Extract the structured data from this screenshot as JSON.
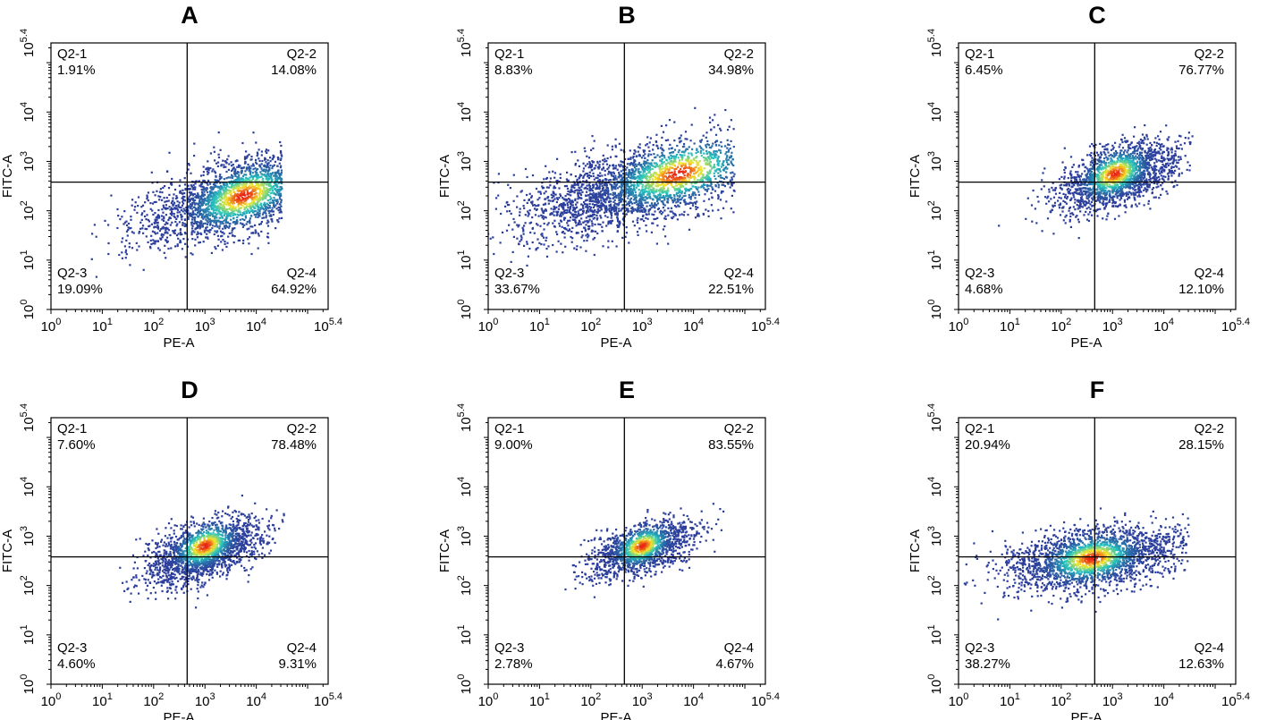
{
  "chart_data": [
    {
      "type": "scatter",
      "panel": "A",
      "xlabel": "PE-A",
      "ylabel": "FITC-A",
      "x_scale": "log10",
      "y_scale": "log10",
      "xlim": [
        1,
        251189
      ],
      "ylim": [
        1,
        251189
      ],
      "gate": {
        "x": 450,
        "y": 380
      },
      "x_ticks": [
        {
          "base": "10",
          "exp": "0"
        },
        {
          "base": "10",
          "exp": "1"
        },
        {
          "base": "10",
          "exp": "2"
        },
        {
          "base": "10",
          "exp": "3"
        },
        {
          "base": "10",
          "exp": "4"
        },
        {
          "base": "10",
          "exp": "5.4"
        }
      ],
      "y_ticks": [
        {
          "base": "10",
          "exp": "0"
        },
        {
          "base": "10",
          "exp": "1"
        },
        {
          "base": "10",
          "exp": "2"
        },
        {
          "base": "10",
          "exp": "3"
        },
        {
          "base": "10",
          "exp": "4"
        },
        {
          "base": "10",
          "exp": "5.4"
        }
      ],
      "quadrants": [
        {
          "name": "Q2-1",
          "value": "1.91%"
        },
        {
          "name": "Q2-2",
          "value": "14.08%"
        },
        {
          "name": "Q2-3",
          "value": "19.09%"
        },
        {
          "name": "Q2-4",
          "value": "64.92%"
        }
      ],
      "population": {
        "center_log": [
          3.7,
          2.3
        ],
        "spread_log": [
          0.95,
          0.38
        ],
        "slope": 0.3,
        "x_range_log": [
          0,
          4.5
        ],
        "dense_center_log": [
          3.75,
          2.3
        ],
        "count": 2600
      },
      "colors": {
        "low": "#2c3e9c",
        "mid": "#25c4c0",
        "high": "#e81e13"
      }
    },
    {
      "type": "scatter",
      "panel": "B",
      "xlabel": "PE-A",
      "ylabel": "FITC-A",
      "x_scale": "log10",
      "y_scale": "log10",
      "xlim": [
        1,
        251189
      ],
      "ylim": [
        1,
        251189
      ],
      "gate": {
        "x": 450,
        "y": 380
      },
      "x_ticks": [
        {
          "base": "10",
          "exp": "0"
        },
        {
          "base": "10",
          "exp": "1"
        },
        {
          "base": "10",
          "exp": "2"
        },
        {
          "base": "10",
          "exp": "3"
        },
        {
          "base": "10",
          "exp": "4"
        },
        {
          "base": "10",
          "exp": "5.4"
        }
      ],
      "y_ticks": [
        {
          "base": "10",
          "exp": "0"
        },
        {
          "base": "10",
          "exp": "1"
        },
        {
          "base": "10",
          "exp": "2"
        },
        {
          "base": "10",
          "exp": "3"
        },
        {
          "base": "10",
          "exp": "4"
        },
        {
          "base": "10",
          "exp": "5.4"
        }
      ],
      "quadrants": [
        {
          "name": "Q2-1",
          "value": "8.83%"
        },
        {
          "name": "Q2-2",
          "value": "34.98%"
        },
        {
          "name": "Q2-3",
          "value": "33.67%"
        },
        {
          "name": "Q2-4",
          "value": "22.51%"
        }
      ],
      "population": {
        "center_log": [
          3.0,
          2.5
        ],
        "spread_log": [
          1.25,
          0.4
        ],
        "slope": 0.25,
        "x_range_log": [
          0,
          4.8
        ],
        "dense_center_log": [
          3.7,
          2.75
        ],
        "count": 2800
      },
      "colors": {
        "low": "#2c3e9c",
        "mid": "#25c4c0",
        "high": "#e81e13"
      }
    },
    {
      "type": "scatter",
      "panel": "C",
      "xlabel": "PE-A",
      "ylabel": "FITC-A",
      "x_scale": "log10",
      "y_scale": "log10",
      "xlim": [
        1,
        251189
      ],
      "ylim": [
        1,
        251189
      ],
      "gate": {
        "x": 450,
        "y": 380
      },
      "x_ticks": [
        {
          "base": "10",
          "exp": "0"
        },
        {
          "base": "10",
          "exp": "1"
        },
        {
          "base": "10",
          "exp": "2"
        },
        {
          "base": "10",
          "exp": "3"
        },
        {
          "base": "10",
          "exp": "4"
        },
        {
          "base": "10",
          "exp": "5.4"
        }
      ],
      "y_ticks": [
        {
          "base": "10",
          "exp": "0"
        },
        {
          "base": "10",
          "exp": "1"
        },
        {
          "base": "10",
          "exp": "2"
        },
        {
          "base": "10",
          "exp": "3"
        },
        {
          "base": "10",
          "exp": "4"
        },
        {
          "base": "10",
          "exp": "5.4"
        }
      ],
      "quadrants": [
        {
          "name": "Q2-1",
          "value": "6.45%"
        },
        {
          "name": "Q2-2",
          "value": "76.77%"
        },
        {
          "name": "Q2-3",
          "value": "4.68%"
        },
        {
          "name": "Q2-4",
          "value": "12.10%"
        }
      ],
      "population": {
        "center_log": [
          3.1,
          2.7
        ],
        "spread_log": [
          0.6,
          0.3
        ],
        "slope": 0.3,
        "x_range_log": [
          0.5,
          4.6
        ],
        "dense_center_log": [
          3.05,
          2.75
        ],
        "count": 1900
      },
      "colors": {
        "low": "#2c3e9c",
        "mid": "#25c4c0",
        "high": "#e81e13"
      }
    },
    {
      "type": "scatter",
      "panel": "D",
      "xlabel": "PE-A",
      "ylabel": "FITC-A",
      "x_scale": "log10",
      "y_scale": "log10",
      "xlim": [
        1,
        251189
      ],
      "ylim": [
        1,
        251189
      ],
      "gate": {
        "x": 450,
        "y": 380
      },
      "x_ticks": [
        {
          "base": "10",
          "exp": "0"
        },
        {
          "base": "10",
          "exp": "1"
        },
        {
          "base": "10",
          "exp": "2"
        },
        {
          "base": "10",
          "exp": "3"
        },
        {
          "base": "10",
          "exp": "4"
        },
        {
          "base": "10",
          "exp": "5.4"
        }
      ],
      "y_ticks": [
        {
          "base": "10",
          "exp": "0"
        },
        {
          "base": "10",
          "exp": "1"
        },
        {
          "base": "10",
          "exp": "2"
        },
        {
          "base": "10",
          "exp": "3"
        },
        {
          "base": "10",
          "exp": "4"
        },
        {
          "base": "10",
          "exp": "5.4"
        }
      ],
      "quadrants": [
        {
          "name": "Q2-1",
          "value": "7.60%"
        },
        {
          "name": "Q2-2",
          "value": "78.48%"
        },
        {
          "name": "Q2-3",
          "value": "4.60%"
        },
        {
          "name": "Q2-4",
          "value": "9.31%"
        }
      ],
      "population": {
        "center_log": [
          3.0,
          2.7
        ],
        "spread_log": [
          0.55,
          0.28
        ],
        "slope": 0.3,
        "x_range_log": [
          0.8,
          4.6
        ],
        "dense_center_log": [
          3.0,
          2.8
        ],
        "count": 1900
      },
      "colors": {
        "low": "#2c3e9c",
        "mid": "#25c4c0",
        "high": "#e81e13"
      }
    },
    {
      "type": "scatter",
      "panel": "E",
      "xlabel": "PE-A",
      "ylabel": "FITC-A",
      "x_scale": "log10",
      "y_scale": "log10",
      "xlim": [
        1,
        251189
      ],
      "ylim": [
        1,
        251189
      ],
      "gate": {
        "x": 450,
        "y": 380
      },
      "x_ticks": [
        {
          "base": "10",
          "exp": "0"
        },
        {
          "base": "10",
          "exp": "1"
        },
        {
          "base": "10",
          "exp": "2"
        },
        {
          "base": "10",
          "exp": "3"
        },
        {
          "base": "10",
          "exp": "4"
        },
        {
          "base": "10",
          "exp": "5.4"
        }
      ],
      "y_ticks": [
        {
          "base": "10",
          "exp": "0"
        },
        {
          "base": "10",
          "exp": "1"
        },
        {
          "base": "10",
          "exp": "2"
        },
        {
          "base": "10",
          "exp": "3"
        },
        {
          "base": "10",
          "exp": "4"
        },
        {
          "base": "10",
          "exp": "5.4"
        }
      ],
      "quadrants": [
        {
          "name": "Q2-1",
          "value": "9.00%"
        },
        {
          "name": "Q2-2",
          "value": "83.55%"
        },
        {
          "name": "Q2-3",
          "value": "2.78%"
        },
        {
          "name": "Q2-4",
          "value": "4.67%"
        }
      ],
      "population": {
        "center_log": [
          3.0,
          2.75
        ],
        "spread_log": [
          0.5,
          0.25
        ],
        "slope": 0.3,
        "x_range_log": [
          1.0,
          4.6
        ],
        "dense_center_log": [
          3.0,
          2.8
        ],
        "count": 1500
      },
      "colors": {
        "low": "#2c3e9c",
        "mid": "#25c4c0",
        "high": "#e81e13"
      }
    },
    {
      "type": "scatter",
      "panel": "F",
      "xlabel": "PE-A",
      "ylabel": "FITC-A",
      "x_scale": "log10",
      "y_scale": "log10",
      "xlim": [
        1,
        251189
      ],
      "ylim": [
        1,
        251189
      ],
      "gate": {
        "x": 450,
        "y": 380
      },
      "x_ticks": [
        {
          "base": "10",
          "exp": "0"
        },
        {
          "base": "10",
          "exp": "1"
        },
        {
          "base": "10",
          "exp": "2"
        },
        {
          "base": "10",
          "exp": "3"
        },
        {
          "base": "10",
          "exp": "4"
        },
        {
          "base": "10",
          "exp": "5.4"
        }
      ],
      "y_ticks": [
        {
          "base": "10",
          "exp": "0"
        },
        {
          "base": "10",
          "exp": "1"
        },
        {
          "base": "10",
          "exp": "2"
        },
        {
          "base": "10",
          "exp": "3"
        },
        {
          "base": "10",
          "exp": "4"
        },
        {
          "base": "10",
          "exp": "5.4"
        }
      ],
      "quadrants": [
        {
          "name": "Q2-1",
          "value": "20.94%"
        },
        {
          "name": "Q2-2",
          "value": "28.15%"
        },
        {
          "name": "Q2-3",
          "value": "38.27%"
        },
        {
          "name": "Q2-4",
          "value": "12.63%"
        }
      ],
      "population": {
        "center_log": [
          2.6,
          2.55
        ],
        "spread_log": [
          0.85,
          0.3
        ],
        "slope": 0.15,
        "x_range_log": [
          0.1,
          4.5
        ],
        "dense_center_log": [
          2.6,
          2.55
        ],
        "count": 2300
      },
      "colors": {
        "low": "#2c3e9c",
        "mid": "#25c4c0",
        "high": "#e81e13"
      }
    }
  ]
}
